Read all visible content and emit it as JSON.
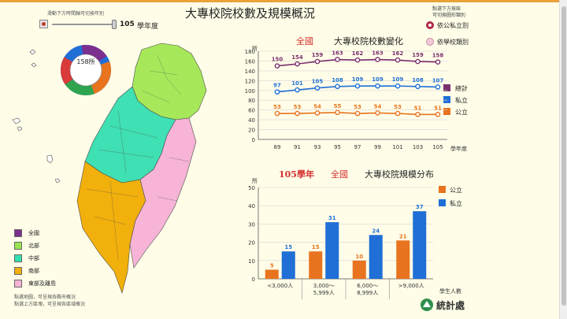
{
  "app": {
    "title": "大專校院校數及規模概況",
    "slider_hint": "滑動下方時間軸可切換年別",
    "year_value": "105",
    "year_unit": "學年度",
    "selector_hint_1": "點選下方按鈕",
    "selector_hint_2": "可切換圖形類別",
    "options": [
      "依公私立別",
      "依學校類別"
    ],
    "donut_label": "158所",
    "map_legend": [
      {
        "label": "全國",
        "color": "#7b2f8f"
      },
      {
        "label": "北部",
        "color": "#9be352"
      },
      {
        "label": "中部",
        "color": "#33e0b0"
      },
      {
        "label": "南部",
        "color": "#f2b00c"
      },
      {
        "label": "東部及離島",
        "color": "#f7b4d6"
      }
    ],
    "notes": [
      "點選地圖，可呈現各縣市概況",
      "點選上方區塊，可呈現各區域概況"
    ],
    "logo_text": "統計處",
    "icons": [
      "record-icon",
      "slider-knob-icon",
      "radio-icon",
      "donut-icon",
      "logo-icon"
    ]
  },
  "chart_data": [
    {
      "type": "line",
      "title": "大專校院校數變化",
      "region_label": "全國",
      "ylabel": "所",
      "xlabel": "學年度",
      "x": [
        "89",
        "91",
        "93",
        "95",
        "97",
        "99",
        "101",
        "103",
        "105"
      ],
      "ylim": [
        0,
        180
      ],
      "yticks": [
        0,
        20,
        40,
        60,
        80,
        100,
        120,
        140,
        160,
        180
      ],
      "series": [
        {
          "name": "總計",
          "color": "#7b2f6f",
          "values": [
            150,
            154,
            159,
            163,
            162,
            163,
            162,
            159,
            158
          ]
        },
        {
          "name": "私立",
          "color": "#1f6fd6",
          "values": [
            97,
            101,
            105,
            108,
            109,
            109,
            109,
            108,
            107
          ]
        },
        {
          "name": "公立",
          "color": "#e8741f",
          "values": [
            53,
            53,
            54,
            55,
            53,
            54,
            53,
            51,
            51
          ]
        }
      ],
      "grid": true,
      "legend": "right"
    },
    {
      "type": "bar",
      "year_label": "105學年",
      "region_label": "全國",
      "title": "大專校院規模分布",
      "ylabel": "所",
      "xlabel": "學生人數",
      "categories": [
        "<3,000人",
        "3,000～5,999人",
        "6,000～8,999人",
        ">9,000人"
      ],
      "category_lines": [
        [
          "<3,000人"
        ],
        [
          "3,000～",
          "5,999人"
        ],
        [
          "6,000～",
          "8,999人"
        ],
        [
          ">9,000人"
        ]
      ],
      "ylim": [
        0,
        50
      ],
      "yticks": [
        0,
        10,
        20,
        30,
        40,
        50
      ],
      "series": [
        {
          "name": "公立",
          "color": "#e8741f",
          "values": [
            5,
            15,
            10,
            21
          ]
        },
        {
          "name": "私立",
          "color": "#1f6fd6",
          "values": [
            15,
            31,
            24,
            37
          ]
        }
      ],
      "grid": true,
      "legend": "right"
    }
  ]
}
